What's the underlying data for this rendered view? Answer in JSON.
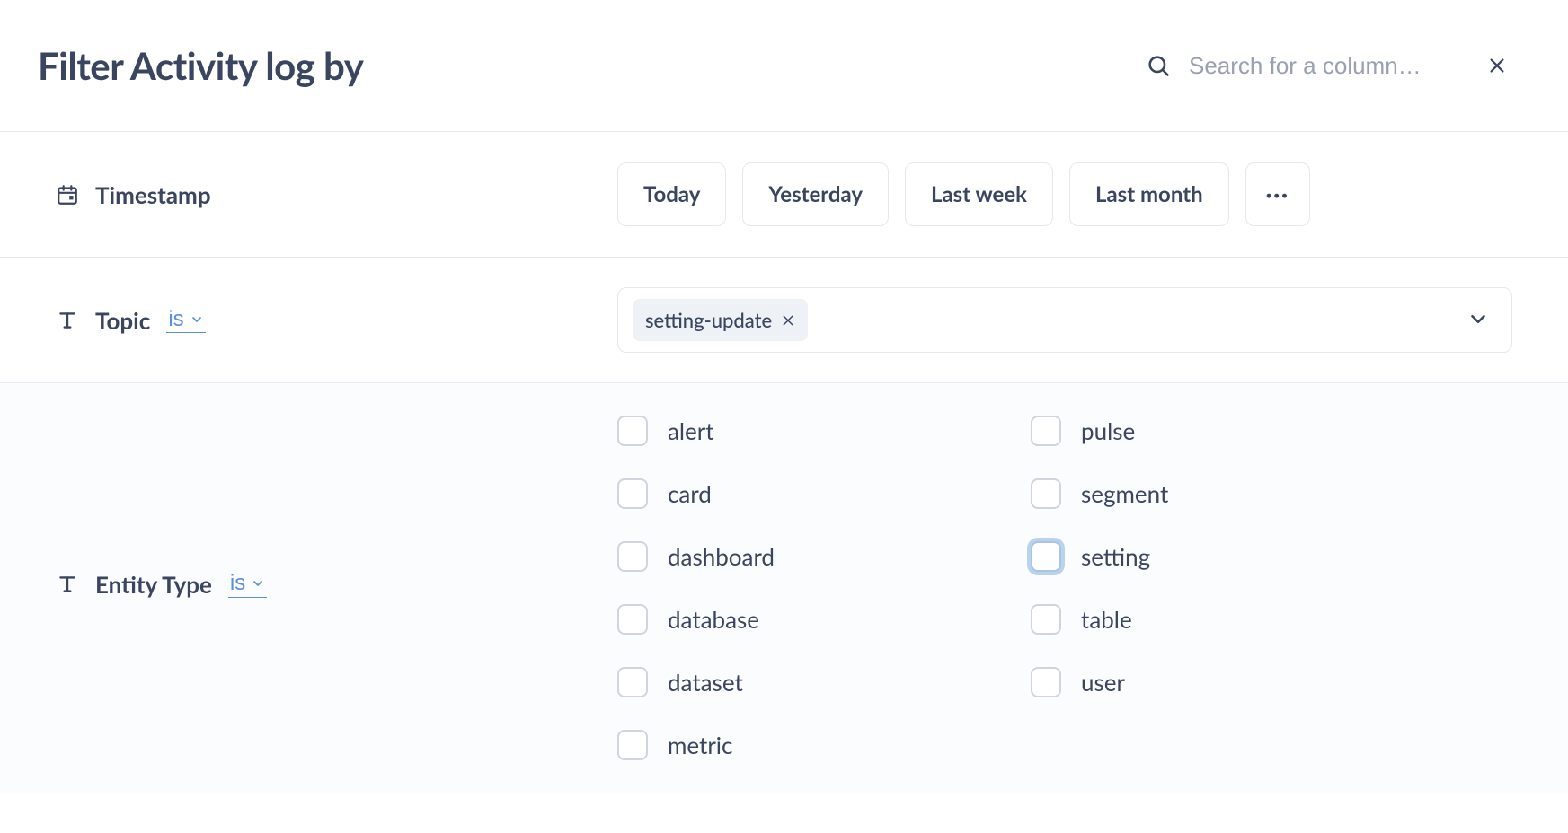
{
  "header": {
    "title": "Filter Activity log by",
    "search_placeholder": "Search for a column…"
  },
  "filters": {
    "timestamp": {
      "label": "Timestamp",
      "icon": "calendar-icon",
      "quick": [
        "Today",
        "Yesterday",
        "Last week",
        "Last month"
      ],
      "more_label": "···"
    },
    "topic": {
      "label": "Topic",
      "icon": "text-icon",
      "operator": "is",
      "selected": [
        {
          "value": "setting-update"
        }
      ]
    },
    "entity_type": {
      "label": "Entity Type",
      "icon": "text-icon",
      "operator": "is",
      "columns": [
        [
          {
            "label": "alert",
            "checked": false,
            "focused": false
          },
          {
            "label": "card",
            "checked": false,
            "focused": false
          },
          {
            "label": "dashboard",
            "checked": false,
            "focused": false
          },
          {
            "label": "database",
            "checked": false,
            "focused": false
          },
          {
            "label": "dataset",
            "checked": false,
            "focused": false
          },
          {
            "label": "metric",
            "checked": false,
            "focused": false
          }
        ],
        [
          {
            "label": "pulse",
            "checked": false,
            "focused": false
          },
          {
            "label": "segment",
            "checked": false,
            "focused": false
          },
          {
            "label": "setting",
            "checked": false,
            "focused": true
          },
          {
            "label": "table",
            "checked": false,
            "focused": false
          },
          {
            "label": "user",
            "checked": false,
            "focused": false
          }
        ]
      ]
    }
  },
  "colors": {
    "text_dark": "#3a4660",
    "text_muted": "#9aa0b2",
    "border": "#e5e8ee",
    "link_blue": "#5b8fd6",
    "chip_bg": "#eef1f5",
    "focus_ring": "#b9d2ee",
    "page_bg": "#fbfcfd"
  }
}
